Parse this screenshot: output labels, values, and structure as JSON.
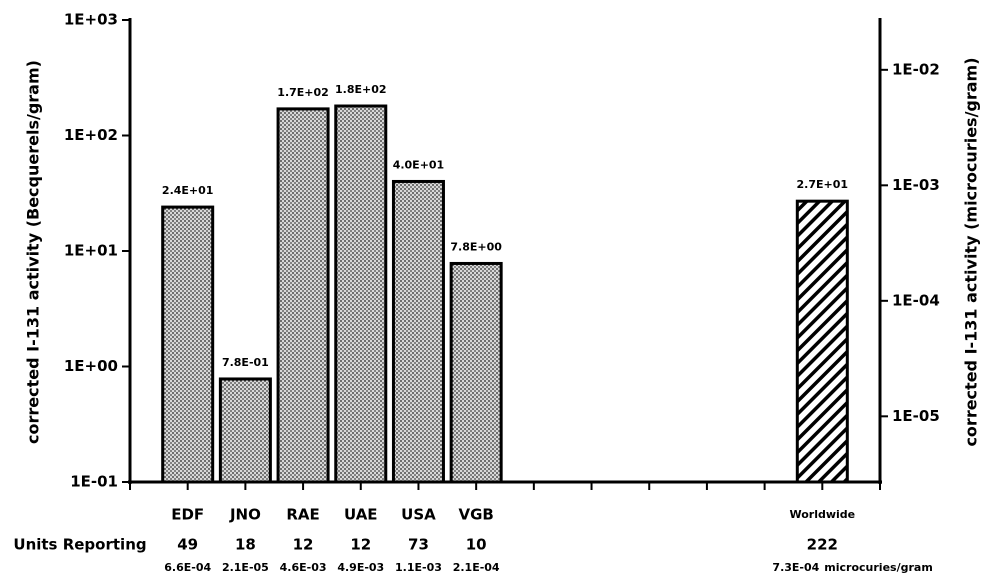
{
  "chart_data": {
    "type": "bar",
    "log_scale": true,
    "y_label": "corrected I-131 activity (Becquerels/gram)",
    "y2_label": "corrected I-131 activity (microcuries/gram)",
    "categories": [
      "EDF",
      "JNO",
      "RAE",
      "UAE",
      "USA",
      "VGB",
      null,
      null,
      null,
      null,
      null,
      "Worldwide"
    ],
    "values": [
      24,
      0.78,
      170,
      180,
      40,
      7.8,
      null,
      null,
      null,
      null,
      null,
      27
    ],
    "value_labels": [
      "2.4E+01",
      "7.8E-01",
      "1.7E+02",
      "1.8E+02",
      "4.0E+01",
      "7.8E+00",
      null,
      null,
      null,
      null,
      null,
      "2.7E+01"
    ],
    "pattern": [
      "dots",
      "dots",
      "dots",
      "dots",
      "dots",
      "dots",
      null,
      null,
      null,
      null,
      null,
      "hatch"
    ],
    "color": "#000000",
    "units_label": "Units Reporting",
    "units_reporting": [
      49,
      18,
      12,
      12,
      73,
      10,
      null,
      null,
      null,
      null,
      null,
      222
    ],
    "secondary_labels": [
      "6.6E-04",
      "2.1E-05",
      "4.6E-03",
      "4.9E-03",
      "1.1E-03",
      "2.1E-04",
      null,
      null,
      null,
      null,
      null,
      "7.3E-04"
    ],
    "secondary_unit": "microcuries/gram",
    "ylim": [
      0.1,
      1000
    ],
    "yticks": [
      {
        "value": 0.1,
        "label": "1E-01"
      },
      {
        "value": 1,
        "label": "1E+00"
      },
      {
        "value": 10,
        "label": "1E+01"
      },
      {
        "value": 100,
        "label": "1E+02"
      },
      {
        "value": 1000,
        "label": "1E+03"
      }
    ],
    "y2lim": [
      2.7e-06,
      0.027
    ],
    "y2ticks": [
      {
        "value": 1e-05,
        "label": "1E-05"
      },
      {
        "value": 0.0001,
        "label": "1E-04"
      },
      {
        "value": 0.001,
        "label": "1E-03"
      },
      {
        "value": 0.01,
        "label": "1E-02"
      }
    ]
  }
}
